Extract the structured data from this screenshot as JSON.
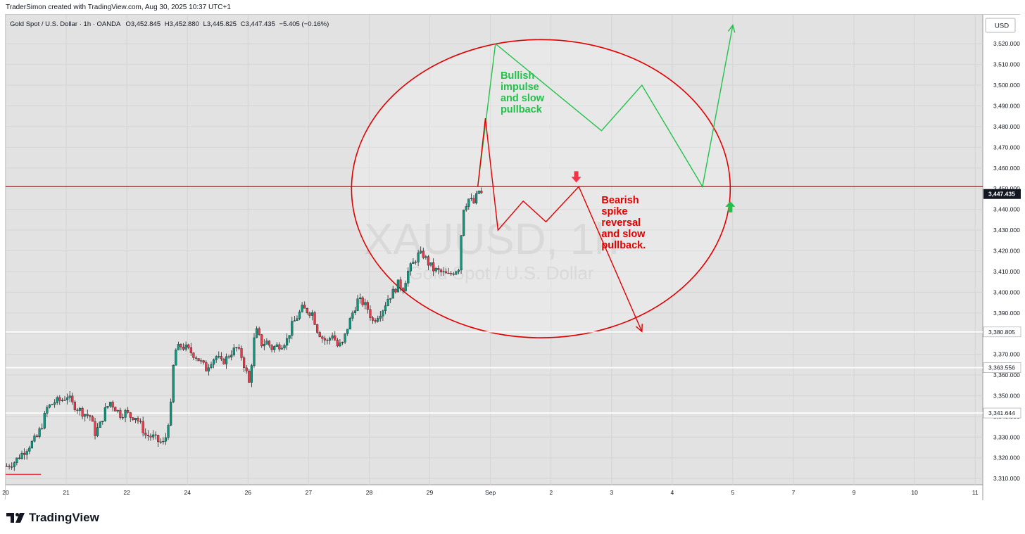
{
  "header": {
    "credit": "TraderSimon created with TradingView.com, Aug 30, 2025 10:37 UTC+1",
    "symbol_desc": "Gold Spot / U.S. Dollar · 1h · OANDA",
    "ohlc": [
      {
        "k": "O",
        "v": "3,452.845"
      },
      {
        "k": "H",
        "v": "3,452.880"
      },
      {
        "k": "L",
        "v": "3,445.825"
      },
      {
        "k": "C",
        "v": "3,447.435"
      }
    ],
    "change": "−5.405 (−0.16%)",
    "currency": "USD"
  },
  "watermark": {
    "symbol": "XAUUSD, 1h",
    "desc": "Gold Spot / U.S. Dollar"
  },
  "footer": {
    "brand": "TradingView"
  },
  "colors": {
    "up": "#089981",
    "down": "#f23645",
    "red_line": "#e00000",
    "green_line": "#22c24a",
    "price_label_bg": "#131722"
  },
  "chart_data": {
    "type": "candlestick",
    "y_ticks": [
      3310,
      3320,
      3330,
      3340,
      3350,
      3360,
      3370,
      3380,
      3390,
      3400,
      3410,
      3420,
      3430,
      3440,
      3450,
      3460,
      3470,
      3480,
      3490,
      3500,
      3510,
      3520
    ],
    "ylim": [
      3307,
      3534
    ],
    "x_ticks": [
      "20",
      "21",
      "22",
      "24",
      "26",
      "27",
      "28",
      "29",
      "Sep",
      "2",
      "3",
      "4",
      "5",
      "7",
      "9",
      "10",
      "11"
    ],
    "x_tick_idx": [
      0,
      24,
      48,
      72,
      96,
      120,
      144,
      168,
      192,
      216,
      240,
      264,
      288,
      312,
      336,
      360,
      384
    ],
    "xlim": [
      0,
      387
    ],
    "price_label": "3,447.435",
    "horizontal_levels": [
      {
        "value": 3451.0,
        "label": "",
        "color": "#e00000"
      },
      {
        "value": 3380.805,
        "label": "3,380.805",
        "color": "#ffffff"
      },
      {
        "value": 3363.556,
        "label": "3,363.556",
        "color": "#ffffff"
      },
      {
        "value": 3341.644,
        "label": "3,341.644",
        "color": "#ffffff"
      }
    ],
    "price_path": [
      [
        0,
        3316
      ],
      [
        3,
        3318
      ],
      [
        6,
        3322
      ],
      [
        9,
        3326
      ],
      [
        12,
        3330
      ],
      [
        14,
        3336
      ],
      [
        16,
        3344
      ],
      [
        19,
        3347
      ],
      [
        22,
        3348
      ],
      [
        24,
        3350
      ],
      [
        26,
        3346
      ],
      [
        28,
        3344
      ],
      [
        30,
        3342
      ],
      [
        33,
        3340
      ],
      [
        35,
        3332
      ],
      [
        37,
        3336
      ],
      [
        39,
        3343
      ],
      [
        41,
        3347
      ],
      [
        43,
        3344
      ],
      [
        45,
        3341
      ],
      [
        47,
        3342
      ],
      [
        49,
        3340
      ],
      [
        51,
        3340
      ],
      [
        53,
        3336
      ],
      [
        55,
        3331
      ],
      [
        58,
        3330
      ],
      [
        60,
        3328
      ],
      [
        62,
        3327
      ],
      [
        63,
        3330
      ],
      [
        65,
        3345
      ],
      [
        66,
        3364
      ],
      [
        67,
        3372
      ],
      [
        69,
        3374
      ],
      [
        71,
        3373
      ],
      [
        73,
        3371
      ],
      [
        75,
        3369
      ],
      [
        77,
        3366
      ],
      [
        79,
        3363
      ],
      [
        81,
        3367
      ],
      [
        83,
        3369
      ],
      [
        85,
        3366
      ],
      [
        87,
        3368
      ],
      [
        89,
        3371
      ],
      [
        91,
        3373
      ],
      [
        93,
        3369
      ],
      [
        95,
        3361
      ],
      [
        96,
        3356
      ],
      [
        97,
        3366
      ],
      [
        98,
        3377
      ],
      [
        99,
        3381
      ],
      [
        101,
        3375
      ],
      [
        103,
        3376
      ],
      [
        105,
        3373
      ],
      [
        107,
        3374
      ],
      [
        109,
        3375
      ],
      [
        111,
        3377
      ],
      [
        113,
        3384
      ],
      [
        115,
        3388
      ],
      [
        117,
        3392
      ],
      [
        119,
        3391
      ],
      [
        121,
        3390
      ],
      [
        123,
        3382
      ],
      [
        125,
        3378
      ],
      [
        127,
        3376
      ],
      [
        129,
        3380
      ],
      [
        131,
        3374
      ],
      [
        133,
        3375
      ],
      [
        135,
        3383
      ],
      [
        137,
        3390
      ],
      [
        139,
        3396
      ],
      [
        141,
        3395
      ],
      [
        143,
        3392
      ],
      [
        145,
        3386
      ],
      [
        147,
        3389
      ],
      [
        149,
        3392
      ],
      [
        151,
        3397
      ],
      [
        153,
        3400
      ],
      [
        155,
        3404
      ],
      [
        157,
        3402
      ],
      [
        159,
        3410
      ],
      [
        161,
        3414
      ],
      [
        163,
        3418
      ],
      [
        165,
        3418
      ],
      [
        167,
        3414
      ],
      [
        169,
        3411
      ],
      [
        171,
        3410
      ],
      [
        173,
        3409
      ],
      [
        175,
        3408
      ],
      [
        177,
        3410
      ],
      [
        179,
        3412
      ],
      [
        180,
        3428
      ],
      [
        181,
        3441
      ],
      [
        183,
        3445
      ],
      [
        185,
        3443
      ],
      [
        187,
        3449
      ],
      [
        188,
        3447.4
      ]
    ],
    "projections": [
      {
        "label": "Bullish impulse and slow pullback",
        "color": "#22c24a",
        "points": [
          [
            187,
            3451
          ],
          [
            194,
            3520
          ],
          [
            218,
            3496
          ],
          [
            236,
            3478
          ],
          [
            252,
            3500
          ],
          [
            276,
            3451
          ],
          [
            288,
            3529
          ]
        ]
      },
      {
        "label": "Bearish spike reversal and slow pullback.",
        "color": "#e00000",
        "points": [
          [
            187,
            3451
          ],
          [
            190,
            3484
          ],
          [
            195,
            3430
          ],
          [
            205,
            3444
          ],
          [
            214,
            3434
          ],
          [
            227,
            3451
          ],
          [
            252,
            3381
          ]
        ]
      }
    ],
    "arrows": [
      {
        "dir": "down",
        "color": "#f23645",
        "x": 226,
        "value": 3453
      },
      {
        "dir": "up",
        "color": "#22c24a",
        "x": 287,
        "value": 3444
      }
    ],
    "circle": {
      "center_x": 212,
      "center_value": 3450,
      "radius_x": 75,
      "radius_value": 72
    },
    "annotations": [
      {
        "text_lines": [
          "Bullish",
          "impulse",
          "and slow",
          "pullback"
        ],
        "color": "#22c24a",
        "x": 196,
        "value": 3503
      },
      {
        "text_lines": [
          "Bearish",
          "spike",
          "reversal",
          "and slow",
          "pullback."
        ],
        "color": "#e00000",
        "x": 236,
        "value": 3443
      }
    ]
  }
}
